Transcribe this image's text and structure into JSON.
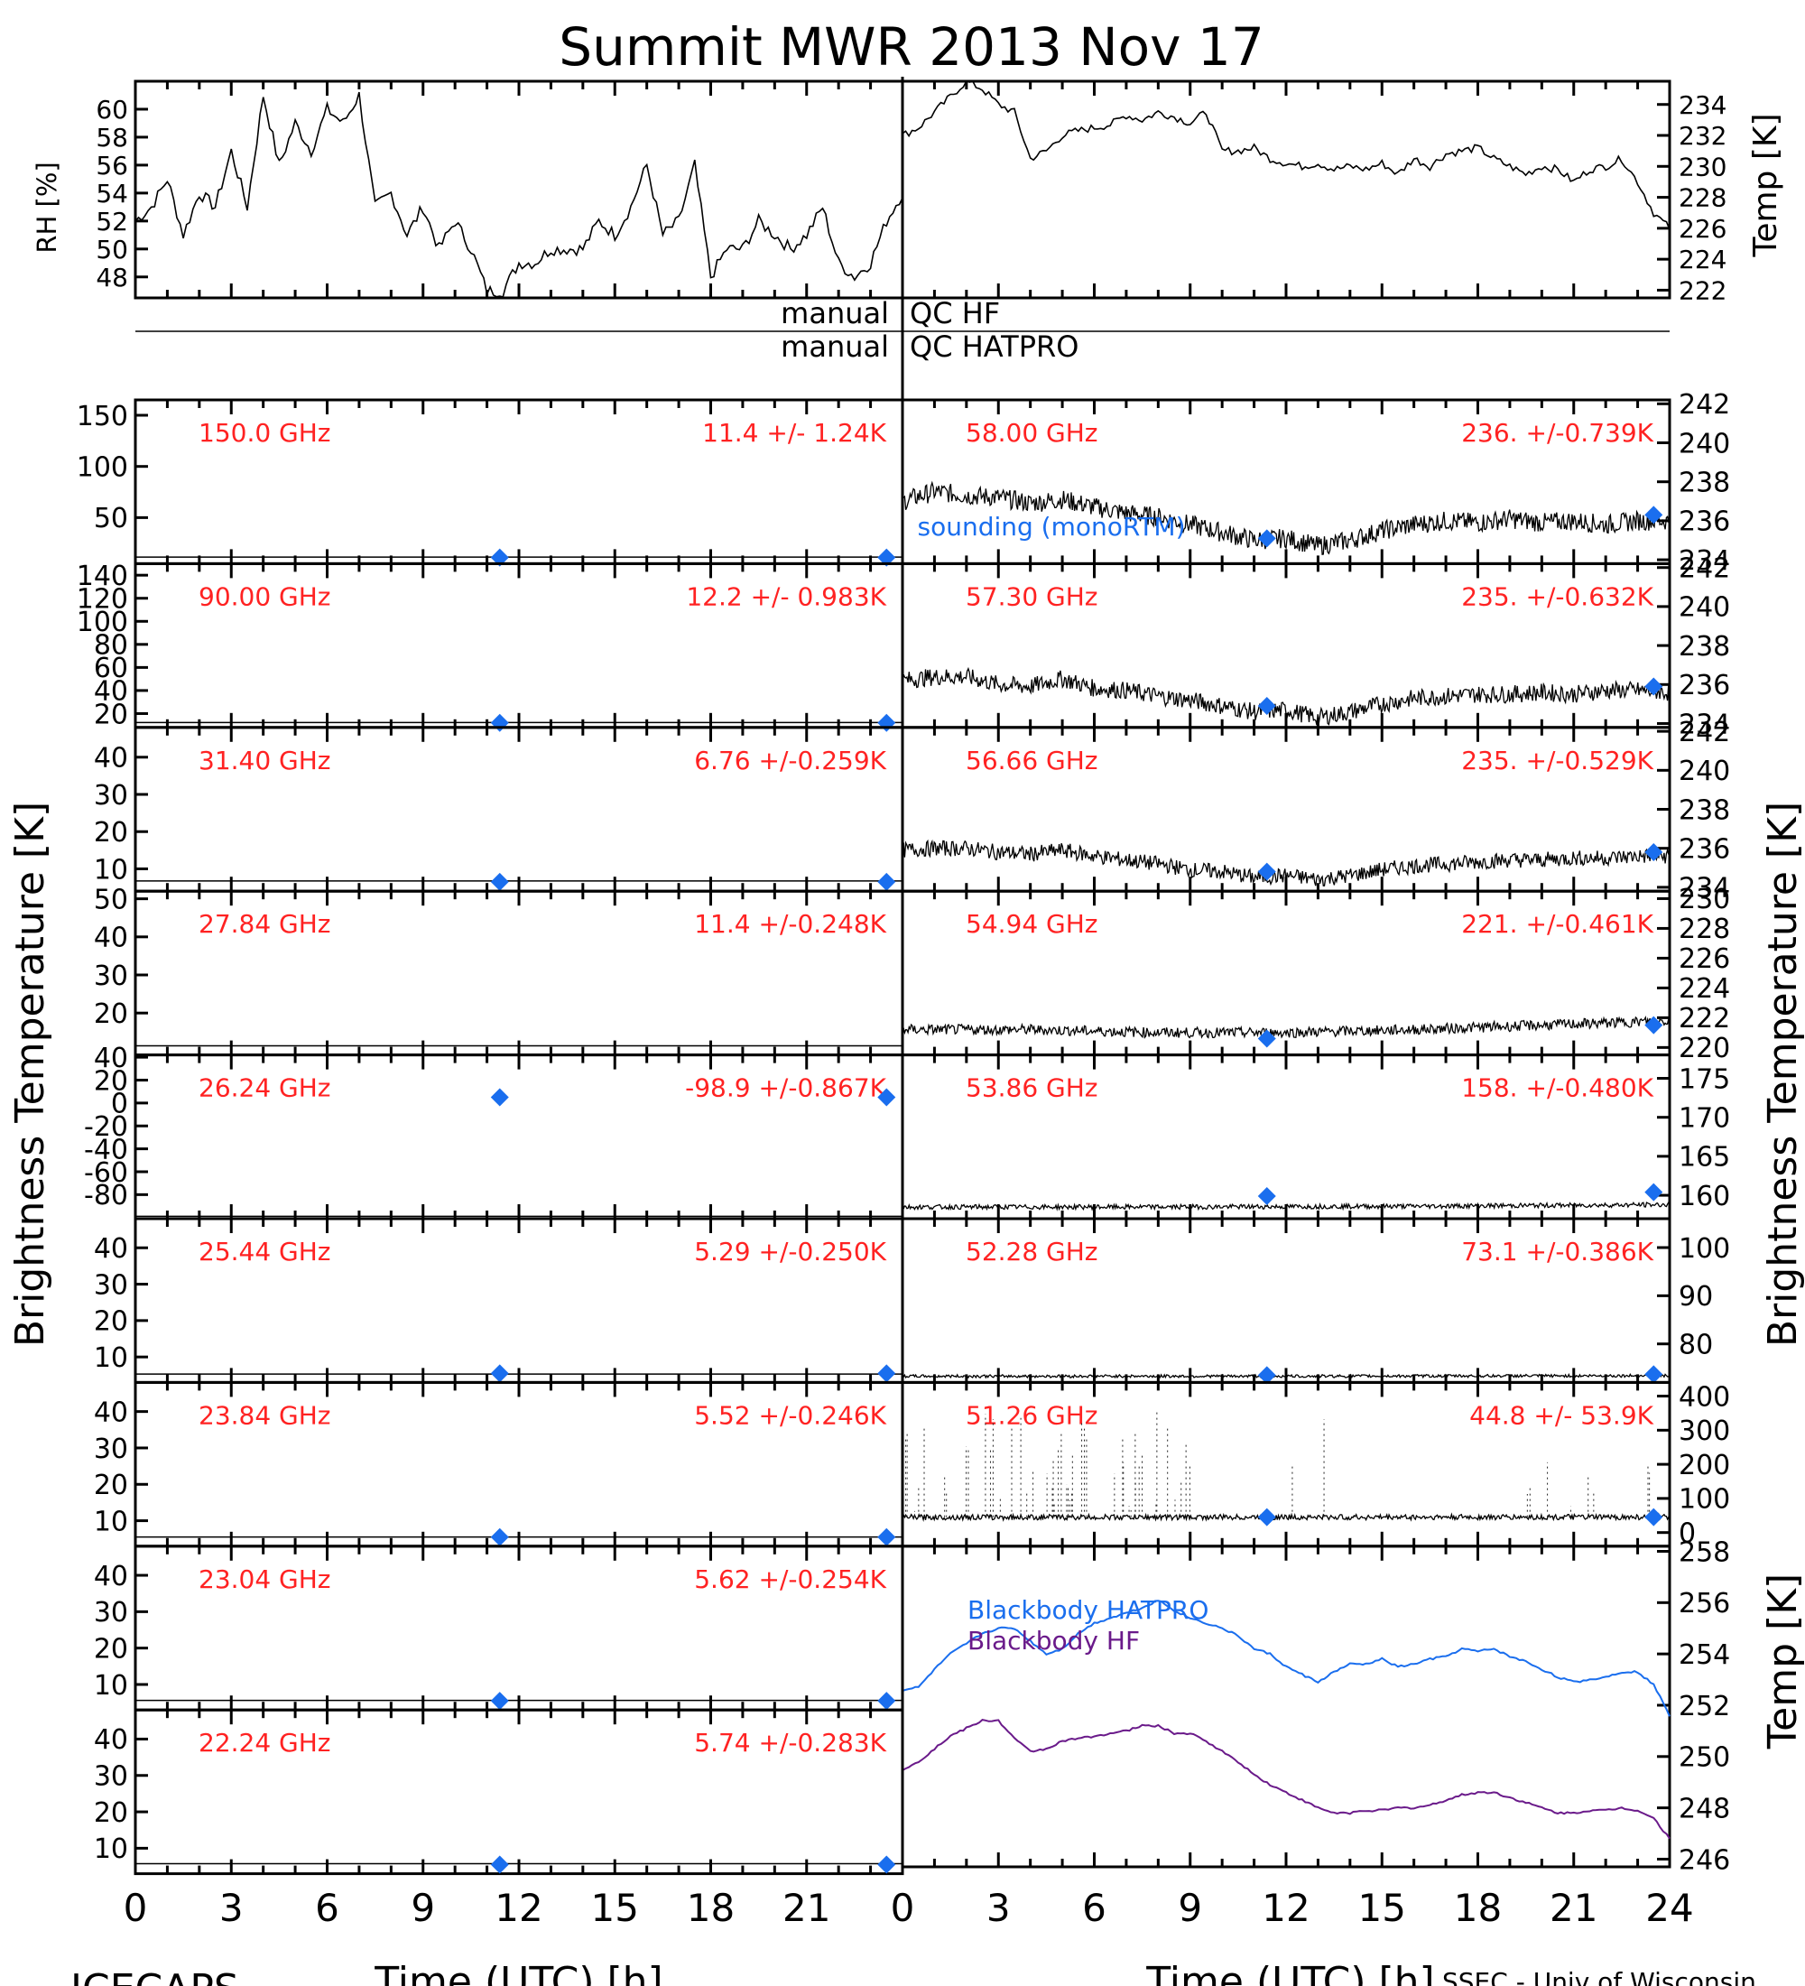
{
  "title": "Summit MWR 2013 Nov 17",
  "footer": {
    "left": "ICECAPS",
    "right": "SSEC - Univ of Wisconsin"
  },
  "qc": {
    "line1_left": "manual",
    "line1_right": "QC HF",
    "line2_left": "manual",
    "line2_right": "QC HATPRO"
  },
  "axis_labels": {
    "rh": "RH [%]",
    "temp_top": "Temp [K]",
    "bt_left": "Brightness Temperature [K]",
    "bt_right": "Brightness Temperature [K]",
    "temp_bottom": "Temp [K]",
    "time": "Time (UTC) [h]"
  },
  "legend": {
    "sounding": "sounding (monoRTM)",
    "bb_hatpro": "Blackbody HATPRO",
    "bb_hf": "Blackbody HF"
  },
  "colors": {
    "freq_text": "#ff2222",
    "sounding": "#1a6eee",
    "bb_hatpro": "#1a6eee",
    "bb_hf": "#6a1a8a",
    "trace": "#000000"
  },
  "x_ticks": [
    "0",
    "3",
    "6",
    "9",
    "12",
    "15",
    "18",
    "21",
    "24"
  ],
  "x_ticks_left": [
    "0",
    "3",
    "6",
    "9",
    "12",
    "15",
    "18",
    "21"
  ],
  "chart_data": [
    {
      "id": "rh",
      "type": "line",
      "ylabel": "RH [%]",
      "xlim": [
        0,
        24
      ],
      "ylim": [
        46.5,
        62
      ],
      "yticks": [
        "48",
        "50",
        "52",
        "54",
        "56",
        "58",
        "60"
      ],
      "x": [
        0,
        0.5,
        1,
        1.5,
        2,
        2.5,
        3,
        3.5,
        4,
        4.5,
        5,
        5.5,
        6,
        6.5,
        7,
        7.5,
        8,
        8.5,
        9,
        9.5,
        10,
        10.5,
        11,
        11.5,
        12,
        12.5,
        13,
        13.5,
        14,
        14.5,
        15,
        15.5,
        16,
        16.5,
        17,
        17.5,
        18,
        18.5,
        19,
        19.5,
        20,
        20.5,
        21,
        21.5,
        22,
        22.5,
        23,
        23.5,
        24
      ],
      "values": [
        52,
        53,
        55,
        51,
        54,
        53,
        57,
        53,
        61,
        56,
        59,
        57,
        60,
        59,
        61,
        53,
        54,
        51,
        53,
        50,
        52,
        50,
        47,
        47,
        49,
        49,
        50,
        50,
        50,
        52,
        51,
        53,
        56,
        51,
        52,
        56,
        48,
        50,
        50,
        52,
        51,
        50,
        51,
        53,
        49,
        48,
        49,
        52,
        54
      ]
    },
    {
      "id": "temp_top",
      "type": "line",
      "ylabel": "Temp [K]",
      "xlim": [
        0,
        24
      ],
      "ylim": [
        221.5,
        235.5
      ],
      "yticks": [
        "222",
        "224",
        "226",
        "228",
        "230",
        "232",
        "234"
      ],
      "x": [
        0,
        0.5,
        1,
        1.5,
        2,
        2.5,
        3,
        3.5,
        4,
        4.5,
        5,
        5.5,
        6,
        6.5,
        7,
        7.5,
        8,
        8.5,
        9,
        9.5,
        10,
        10.5,
        11,
        11.5,
        12,
        12.5,
        13,
        13.5,
        14,
        14.5,
        15,
        15.5,
        16,
        16.5,
        17,
        17.5,
        18,
        18.5,
        19,
        19.5,
        20,
        20.5,
        21,
        21.5,
        22,
        22.5,
        23,
        23.5,
        24
      ],
      "values": [
        232,
        232.5,
        233.5,
        234.5,
        235.5,
        235,
        234,
        233.5,
        230.5,
        231,
        232,
        232.3,
        232.5,
        232.7,
        233.3,
        233,
        233.5,
        233.2,
        232.8,
        233.5,
        231,
        231,
        231.2,
        230.5,
        230.2,
        230,
        230.2,
        229.8,
        230,
        229.8,
        230.2,
        229.5,
        230.5,
        230,
        230.8,
        231,
        231.2,
        230.5,
        230,
        229.5,
        230,
        229.8,
        229,
        229.8,
        230,
        230.5,
        229,
        227,
        226
      ]
    },
    {
      "id": "bt_150.0",
      "type": "line",
      "freq": "150.0 GHz",
      "stats": "11.4 +/-  1.24K",
      "ylim": [
        5,
        165
      ],
      "yticks": [
        "50",
        "100",
        "150"
      ],
      "base": 11.4,
      "sounding": [
        [
          11.4,
          11
        ],
        [
          23.5,
          11
        ]
      ]
    },
    {
      "id": "bt_90.00",
      "type": "line",
      "freq": "90.00 GHz",
      "stats": "12.2 +/- 0.983K",
      "ylim": [
        8,
        150
      ],
      "yticks": [
        "20",
        "40",
        "60",
        "80",
        "100",
        "120",
        "140"
      ],
      "base": 12.2,
      "sounding": [
        [
          11.4,
          12
        ],
        [
          23.5,
          12
        ]
      ]
    },
    {
      "id": "bt_31.40",
      "type": "line",
      "freq": "31.40 GHz",
      "stats": "6.76 +/-0.259K",
      "ylim": [
        4,
        48
      ],
      "yticks": [
        "10",
        "20",
        "30",
        "40"
      ],
      "base": 6.76,
      "sounding": [
        [
          11.4,
          6.5
        ],
        [
          23.5,
          6.5
        ]
      ]
    },
    {
      "id": "bt_27.84",
      "type": "line",
      "freq": "27.84 GHz",
      "stats": "11.4 +/-0.248K",
      "ylim": [
        9,
        52
      ],
      "yticks": [
        "20",
        "30",
        "40",
        "50"
      ],
      "base": 11.4,
      "sounding": []
    },
    {
      "id": "bt_26.24",
      "type": "line",
      "freq": "26.24 GHz",
      "stats": "-98.9 +/-0.867K",
      "ylim": [
        -101,
        42
      ],
      "yticks": [
        "-80",
        "-60",
        "-40",
        "-20",
        "0",
        "20",
        "40"
      ],
      "base": -98.9,
      "sounding": [
        [
          11.4,
          5
        ],
        [
          23.5,
          5
        ]
      ]
    },
    {
      "id": "bt_25.44",
      "type": "line",
      "freq": "25.44 GHz",
      "stats": "5.29 +/-0.250K",
      "ylim": [
        3,
        48
      ],
      "yticks": [
        "10",
        "20",
        "30",
        "40"
      ],
      "base": 5.29,
      "sounding": [
        [
          11.4,
          5.5
        ],
        [
          23.5,
          5.5
        ]
      ]
    },
    {
      "id": "bt_23.84",
      "type": "line",
      "freq": "23.84 GHz",
      "stats": "5.52 +/-0.246K",
      "ylim": [
        3,
        48
      ],
      "yticks": [
        "10",
        "20",
        "30",
        "40"
      ],
      "base": 5.52,
      "sounding": [
        [
          11.4,
          5.5
        ],
        [
          23.5,
          5.5
        ]
      ]
    },
    {
      "id": "bt_23.04",
      "type": "line",
      "freq": "23.04 GHz",
      "stats": "5.62 +/-0.254K",
      "ylim": [
        3,
        48
      ],
      "yticks": [
        "10",
        "20",
        "30",
        "40"
      ],
      "base": 5.62,
      "sounding": [
        [
          11.4,
          5.5
        ],
        [
          23.5,
          5.5
        ]
      ]
    },
    {
      "id": "bt_22.24",
      "type": "line",
      "freq": "22.24 GHz",
      "stats": "5.74 +/-0.283K",
      "ylim": [
        3,
        48
      ],
      "yticks": [
        "10",
        "20",
        "30",
        "40"
      ],
      "base": 5.74,
      "sounding": [
        [
          11.4,
          5.5
        ],
        [
          23.5,
          5.5
        ]
      ]
    },
    {
      "id": "bt_58.00",
      "type": "line",
      "freq": "58.00 GHz",
      "stats": "236. +/-0.739K",
      "ylim": [
        233.8,
        242.2
      ],
      "yticks": [
        "234",
        "236",
        "238",
        "240",
        "242"
      ],
      "x": [
        0,
        1,
        2,
        3,
        4,
        5,
        6,
        7,
        8,
        9,
        10,
        11,
        12,
        13,
        14,
        15,
        16,
        17,
        18,
        19,
        20,
        21,
        22,
        23,
        24
      ],
      "values": [
        237,
        237.5,
        237.3,
        237.2,
        236.9,
        237.1,
        236.7,
        236.4,
        236.2,
        235.8,
        235.4,
        235.0,
        235.1,
        234.7,
        235.0,
        235.5,
        235.8,
        236.0,
        235.9,
        236.1,
        235.9,
        236.0,
        235.8,
        236.0,
        236.0
      ],
      "noise": 0.5,
      "sounding": [
        [
          11.4,
          235.1
        ],
        [
          23.5,
          236.3
        ]
      ]
    },
    {
      "id": "bt_57.30",
      "type": "line",
      "freq": "57.30 GHz",
      "stats": "235. +/-0.632K",
      "ylim": [
        233.8,
        242.2
      ],
      "yticks": [
        "234",
        "236",
        "238",
        "240",
        "242"
      ],
      "x": [
        0,
        1,
        2,
        3,
        4,
        5,
        6,
        7,
        8,
        9,
        10,
        11,
        12,
        13,
        14,
        15,
        16,
        17,
        18,
        19,
        20,
        21,
        22,
        23,
        24
      ],
      "values": [
        236.2,
        236.4,
        236.4,
        236.0,
        235.9,
        236.3,
        235.8,
        235.7,
        235.4,
        235.2,
        234.9,
        234.6,
        234.7,
        234.3,
        234.6,
        235.0,
        235.3,
        235.4,
        235.5,
        235.5,
        235.6,
        235.5,
        235.7,
        235.7,
        235.6
      ],
      "noise": 0.45,
      "sounding": [
        [
          11.4,
          234.9
        ],
        [
          23.5,
          235.9
        ]
      ]
    },
    {
      "id": "bt_56.66",
      "type": "line",
      "freq": "56.66 GHz",
      "stats": "235. +/-0.529K",
      "ylim": [
        233.8,
        242.2
      ],
      "yticks": [
        "234",
        "236",
        "238",
        "240",
        "242"
      ],
      "x": [
        0,
        1,
        2,
        3,
        4,
        5,
        6,
        7,
        8,
        9,
        10,
        11,
        12,
        13,
        14,
        15,
        16,
        17,
        18,
        19,
        20,
        21,
        22,
        23,
        24
      ],
      "values": [
        235.9,
        236.0,
        236.0,
        235.8,
        235.7,
        235.9,
        235.6,
        235.4,
        235.2,
        234.9,
        234.8,
        234.5,
        234.6,
        234.4,
        234.6,
        234.9,
        235.1,
        235.2,
        235.3,
        235.4,
        235.4,
        235.5,
        235.5,
        235.6,
        235.6
      ],
      "noise": 0.4,
      "sounding": [
        [
          11.4,
          234.8
        ],
        [
          23.5,
          235.8
        ]
      ]
    },
    {
      "id": "bt_54.94",
      "type": "line",
      "freq": "54.94 GHz",
      "stats": "221. +/-0.461K",
      "ylim": [
        219.5,
        230.5
      ],
      "yticks": [
        "220",
        "222",
        "224",
        "226",
        "228",
        "230"
      ],
      "x": [
        0,
        4,
        8,
        12,
        16,
        20,
        24
      ],
      "values": [
        221.2,
        221.2,
        221.0,
        221.0,
        221.2,
        221.5,
        221.8
      ],
      "noise": 0.35,
      "sounding": [
        [
          11.4,
          220.6
        ],
        [
          23.5,
          221.5
        ]
      ]
    },
    {
      "id": "bt_53.86",
      "type": "line",
      "freq": "53.86 GHz",
      "stats": "158. +/-0.480K",
      "ylim": [
        157,
        178
      ],
      "yticks": [
        "160",
        "165",
        "170",
        "175"
      ],
      "x": [
        0,
        8,
        16,
        24
      ],
      "values": [
        158.5,
        158.5,
        158.6,
        158.8
      ],
      "noise": 0.3,
      "sounding": [
        [
          11.4,
          159.9
        ],
        [
          23.5,
          160.4
        ]
      ]
    },
    {
      "id": "bt_52.28",
      "type": "line",
      "freq": "52.28 GHz",
      "stats": "73.1 +/-0.386K",
      "ylim": [
        72,
        106
      ],
      "yticks": [
        "80",
        "90",
        "100"
      ],
      "x": [
        0,
        12,
        24
      ],
      "values": [
        73.3,
        73.3,
        73.4
      ],
      "noise": 0.3,
      "sounding": [
        [
          11.4,
          73.5
        ],
        [
          23.5,
          73.7
        ]
      ]
    },
    {
      "id": "bt_51.26",
      "type": "line",
      "freq": "51.26 GHz",
      "stats": "44.8 +/- 53.9K",
      "ylim": [
        -40,
        440
      ],
      "yticks": [
        "0",
        "100",
        "200",
        "300",
        "400"
      ],
      "x": [
        0,
        24
      ],
      "values": [
        45,
        45
      ],
      "noise": 8,
      "sounding": [
        [
          11.4,
          45
        ],
        [
          23.5,
          45
        ]
      ]
    },
    {
      "id": "blackbody",
      "type": "line",
      "ylabel": "Temp [K]",
      "xlim": [
        0,
        24
      ],
      "ylim": [
        245.7,
        258.2
      ],
      "yticks": [
        "246",
        "248",
        "250",
        "252",
        "254",
        "256",
        "258"
      ],
      "x": [
        0,
        0.5,
        1,
        1.5,
        2,
        2.5,
        3,
        3.5,
        4,
        4.5,
        5,
        5.5,
        6,
        6.5,
        7,
        7.5,
        8,
        8.5,
        9,
        9.5,
        10,
        10.5,
        11,
        11.5,
        12,
        12.5,
        13,
        13.5,
        14,
        14.5,
        15,
        15.5,
        16,
        16.5,
        17,
        17.5,
        18,
        18.5,
        19,
        19.5,
        20,
        20.5,
        21,
        21.5,
        22,
        22.5,
        23,
        23.5,
        24
      ],
      "series": [
        {
          "name": "Blackbody HATPRO",
          "values": [
            252.6,
            252.7,
            253.4,
            254.0,
            254.4,
            254.8,
            255.0,
            255.0,
            254.5,
            254.0,
            254.2,
            254.8,
            255.2,
            255.4,
            255.6,
            255.8,
            256.1,
            255.7,
            255.4,
            255.2,
            255.0,
            254.7,
            254.2,
            254.0,
            253.5,
            253.2,
            252.9,
            253.3,
            253.6,
            253.6,
            253.8,
            253.5,
            253.6,
            253.8,
            253.9,
            254.2,
            254.1,
            254.2,
            253.9,
            253.7,
            253.4,
            253.1,
            252.9,
            253.0,
            253.1,
            253.3,
            253.3,
            252.8,
            251.6
          ]
        },
        {
          "name": "Blackbody HF",
          "values": [
            249.5,
            249.8,
            250.3,
            250.8,
            251.1,
            251.4,
            251.4,
            250.7,
            250.2,
            250.3,
            250.6,
            250.7,
            250.8,
            250.9,
            251.0,
            251.2,
            251.2,
            250.9,
            250.9,
            250.6,
            250.2,
            249.8,
            249.3,
            248.9,
            248.6,
            248.3,
            248.0,
            247.8,
            247.8,
            247.9,
            247.9,
            248.0,
            248.0,
            248.1,
            248.3,
            248.5,
            248.6,
            248.6,
            248.4,
            248.2,
            248.0,
            247.8,
            247.8,
            247.9,
            247.9,
            248.0,
            247.9,
            247.6,
            246.8
          ]
        }
      ]
    }
  ]
}
